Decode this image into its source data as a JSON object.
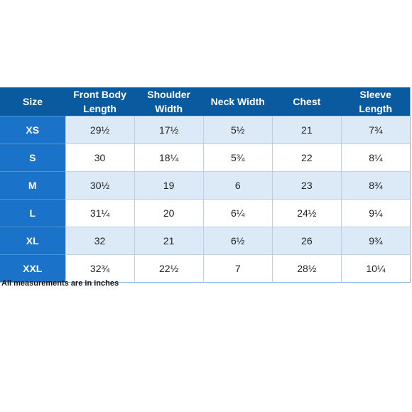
{
  "table": {
    "headers": [
      [
        "Size"
      ],
      [
        "Front Body",
        "Length"
      ],
      [
        "Shoulder",
        "Width"
      ],
      [
        "Neck Width"
      ],
      [
        "Chest"
      ],
      [
        "Sleeve",
        "Length"
      ]
    ],
    "rows": [
      [
        "XS",
        "29½",
        "17½",
        "5½",
        "21",
        "7¾"
      ],
      [
        "S",
        "30",
        "18¼",
        "5¾",
        "22",
        "8¼"
      ],
      [
        "M",
        "30½",
        "19",
        "6",
        "23",
        "8¾"
      ],
      [
        "L",
        "31¼",
        "20",
        "6¼",
        "24½",
        "9¼"
      ],
      [
        "XL",
        "32",
        "21",
        "6½",
        "26",
        "9¾"
      ],
      [
        "XXL",
        "32¾",
        "22½",
        "7",
        "28½",
        "10¼"
      ]
    ]
  },
  "note": "All measurements are in inches",
  "colors": {
    "header_bg": "#0a5aa0",
    "size_col_bg": "#1a73c8",
    "row_alt_bg": "#dce9f6"
  }
}
